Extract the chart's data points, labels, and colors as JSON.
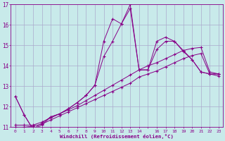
{
  "xlabel": "Windchill (Refroidissement éolien,°C)",
  "background_color": "#c8eaea",
  "grid_color": "#aaaacc",
  "line_color": "#880088",
  "ylim": [
    11,
    17
  ],
  "yticks": [
    11,
    12,
    13,
    14,
    15,
    16,
    17
  ],
  "xtick_labels": [
    "0",
    "1",
    "2",
    "3",
    "4",
    "5",
    "6",
    "7",
    "8",
    "9",
    "10",
    "11",
    "12",
    "13",
    "14",
    "",
    "16",
    "17",
    "18",
    "19",
    "20",
    "21",
    "22",
    "23"
  ],
  "series_data": [
    {
      "y": [
        12.5,
        11.6,
        10.9,
        11.1,
        11.5,
        11.65,
        11.9,
        12.2,
        12.55,
        13.05,
        15.2,
        16.3,
        16.05,
        17.0,
        13.8,
        13.8,
        15.2,
        15.4,
        15.2,
        14.75,
        14.3,
        13.7,
        13.6,
        13.6
      ]
    },
    {
      "y": [
        12.5,
        11.6,
        10.9,
        11.2,
        11.5,
        11.65,
        11.9,
        12.2,
        12.55,
        13.05,
        14.45,
        15.2,
        16.05,
        16.8,
        13.8,
        13.8,
        14.8,
        15.2,
        15.2,
        14.7,
        14.3,
        13.7,
        13.6,
        13.6
      ]
    },
    {
      "y": [
        11.1,
        11.1,
        11.1,
        11.25,
        11.45,
        11.65,
        11.85,
        12.05,
        12.3,
        12.55,
        12.8,
        13.05,
        13.3,
        13.55,
        13.8,
        14.0,
        14.15,
        14.35,
        14.55,
        14.75,
        14.85,
        14.9,
        13.7,
        13.6
      ]
    },
    {
      "y": [
        11.0,
        11.0,
        11.05,
        11.15,
        11.35,
        11.55,
        11.75,
        11.95,
        12.15,
        12.35,
        12.55,
        12.75,
        12.95,
        13.15,
        13.45,
        13.6,
        13.75,
        13.95,
        14.15,
        14.35,
        14.5,
        14.6,
        13.6,
        13.5
      ]
    }
  ]
}
